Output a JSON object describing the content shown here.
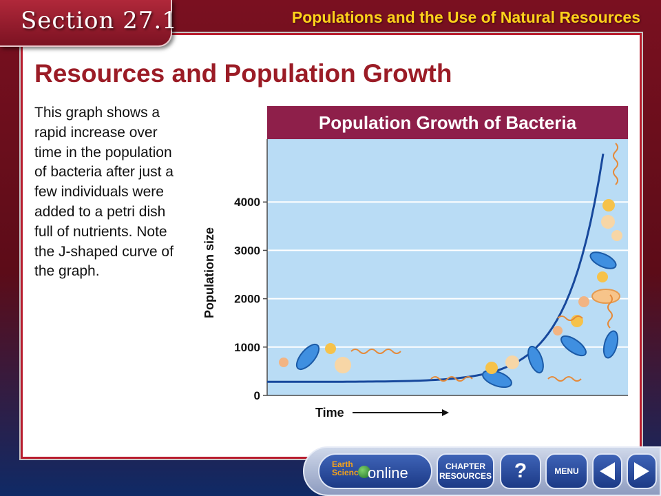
{
  "header": {
    "section_label": "Section 27.1",
    "topic_title": "Populations and the Use of Natural Resources"
  },
  "slide": {
    "heading": "Resources and Population Growth",
    "body": "This graph shows a rapid increase over time in the population of bacteria after just a few individuals were added to a petri dish full of nutrients. Note the J-shaped curve of the graph."
  },
  "chart_data": {
    "type": "line",
    "title": "Population Growth of Bacteria",
    "xlabel": "Time",
    "ylabel": "Population size",
    "y_ticks": [
      0,
      1000,
      2000,
      3000,
      4000
    ],
    "ylim": [
      0,
      5300
    ],
    "x_ticks_shown": false,
    "grid": true,
    "colors": {
      "title_bg": "#8e1f4a",
      "plot_bg": "#b9dcf5",
      "curve": "#17489c",
      "grid": "#ffffff"
    },
    "series": [
      {
        "values_shape": "J-shaped exponential",
        "y_start": 280,
        "y_end": 5000
      }
    ],
    "illustration": "bacteria-cells-icons"
  },
  "nav": {
    "earth_label_1": "Earth",
    "earth_label_2": "Science",
    "online_label": "online",
    "chapter_label_1": "CHAPTER",
    "chapter_label_2": "RESOURCES",
    "help_label": "?",
    "menu_label": "MENU"
  }
}
